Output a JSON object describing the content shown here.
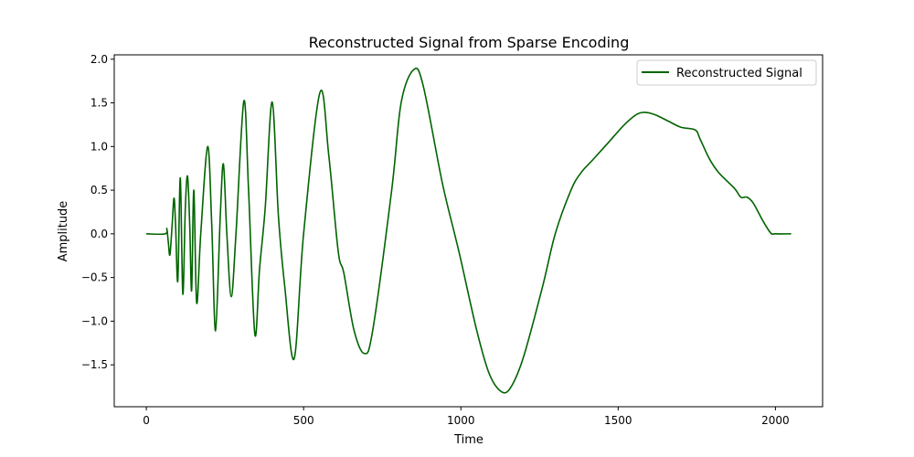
{
  "chart_data": {
    "type": "line",
    "title": "Reconstructed Signal from Sparse Encoding",
    "xlabel": "Time",
    "ylabel": "Amplitude",
    "xlim": [
      -102,
      2150
    ],
    "ylim": [
      -1.98,
      2.05
    ],
    "xticks": [
      0,
      500,
      1000,
      1500,
      2000
    ],
    "yticks": [
      -1.5,
      -1.0,
      -0.5,
      0.0,
      0.5,
      1.0,
      1.5,
      2.0
    ],
    "xtick_labels": [
      "0",
      "500",
      "1000",
      "1500",
      "2000"
    ],
    "ytick_labels": [
      "−1.5",
      "−1.0",
      "−0.5",
      "0.0",
      "0.5",
      "1.0",
      "1.5",
      "2.0"
    ],
    "grid": false,
    "legend_position": "top-right",
    "series": [
      {
        "name": "Reconstructed Signal",
        "color": "#006400",
        "points": [
          [
            0,
            0.0
          ],
          [
            60,
            0.0
          ],
          [
            65,
            0.06
          ],
          [
            70,
            -0.1
          ],
          [
            75,
            -0.24
          ],
          [
            82,
            0.1
          ],
          [
            88,
            0.41
          ],
          [
            93,
            0.1
          ],
          [
            100,
            -0.54
          ],
          [
            108,
            0.64
          ],
          [
            116,
            -0.69
          ],
          [
            124,
            0.3
          ],
          [
            131,
            0.66
          ],
          [
            138,
            0.1
          ],
          [
            144,
            -0.65
          ],
          [
            151,
            0.5
          ],
          [
            160,
            -0.79
          ],
          [
            173,
            0.0
          ],
          [
            195,
            1.0
          ],
          [
            208,
            0.1
          ],
          [
            220,
            -1.11
          ],
          [
            235,
            0.2
          ],
          [
            245,
            0.8
          ],
          [
            256,
            0.0
          ],
          [
            270,
            -0.72
          ],
          [
            285,
            0.0
          ],
          [
            310,
            1.52
          ],
          [
            325,
            0.5
          ],
          [
            345,
            -1.15
          ],
          [
            360,
            -0.4
          ],
          [
            378,
            0.3
          ],
          [
            400,
            1.51
          ],
          [
            420,
            0.2
          ],
          [
            440,
            -0.6
          ],
          [
            470,
            -1.43
          ],
          [
            500,
            0.0
          ],
          [
            552,
            1.62
          ],
          [
            580,
            0.9
          ],
          [
            610,
            -0.2
          ],
          [
            628,
            -0.45
          ],
          [
            660,
            -1.1
          ],
          [
            693,
            -1.37
          ],
          [
            720,
            -1.1
          ],
          [
            780,
            0.5
          ],
          [
            810,
            1.5
          ],
          [
            850,
            1.88
          ],
          [
            880,
            1.7
          ],
          [
            940,
            0.6
          ],
          [
            980,
            0.0
          ],
          [
            1000,
            -0.3
          ],
          [
            1050,
            -1.1
          ],
          [
            1090,
            -1.6
          ],
          [
            1130,
            -1.81
          ],
          [
            1160,
            -1.75
          ],
          [
            1200,
            -1.4
          ],
          [
            1260,
            -0.6
          ],
          [
            1300,
            0.0
          ],
          [
            1350,
            0.5
          ],
          [
            1382,
            0.7
          ],
          [
            1420,
            0.85
          ],
          [
            1470,
            1.05
          ],
          [
            1520,
            1.25
          ],
          [
            1560,
            1.37
          ],
          [
            1590,
            1.39
          ],
          [
            1620,
            1.36
          ],
          [
            1660,
            1.29
          ],
          [
            1700,
            1.22
          ],
          [
            1745,
            1.19
          ],
          [
            1760,
            1.09
          ],
          [
            1790,
            0.86
          ],
          [
            1820,
            0.7
          ],
          [
            1870,
            0.52
          ],
          [
            1890,
            0.42
          ],
          [
            1910,
            0.42
          ],
          [
            1930,
            0.35
          ],
          [
            1960,
            0.15
          ],
          [
            1985,
            0.01
          ],
          [
            2000,
            0.0
          ],
          [
            2050,
            0.0
          ]
        ]
      }
    ]
  }
}
